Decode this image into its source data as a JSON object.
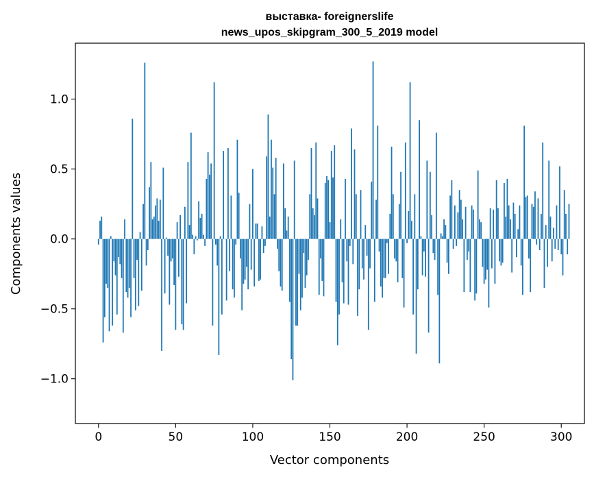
{
  "chart_data": {
    "type": "bar",
    "title_lines": [
      "выставка- foreignerslife",
      "news_upos_skipgram_300_5_2019 model"
    ],
    "xlabel": "Vector components",
    "ylabel": "Components values",
    "xlim": [
      -15,
      315
    ],
    "ylim": [
      -1.32,
      1.4
    ],
    "xticks": [
      0,
      50,
      100,
      150,
      200,
      250,
      300
    ],
    "xtick_labels": [
      "0",
      "50",
      "100",
      "150",
      "200",
      "250",
      "300"
    ],
    "yticks": [
      -1.0,
      -0.5,
      0.0,
      0.5,
      1.0
    ],
    "ytick_labels": [
      "−1.0",
      "−0.5",
      "0.0",
      "0.5",
      "1.0"
    ],
    "grid": false,
    "bar_color": "#1f77b4",
    "values": [
      -0.04,
      0.13,
      0.16,
      -0.74,
      -0.56,
      -0.32,
      -0.35,
      -0.66,
      0.02,
      -0.62,
      -0.16,
      -0.26,
      -0.54,
      -0.13,
      -0.18,
      -0.28,
      -0.67,
      0.14,
      -0.38,
      -0.42,
      -0.35,
      -0.56,
      0.86,
      -0.28,
      -0.51,
      -0.15,
      -0.48,
      0.05,
      -0.37,
      0.25,
      1.26,
      -0.19,
      -0.08,
      0.37,
      0.55,
      0.14,
      0.16,
      0.24,
      0.29,
      0.13,
      0.28,
      -0.8,
      0.51,
      -0.39,
      0.01,
      -0.12,
      -0.47,
      -0.16,
      -0.14,
      -0.33,
      -0.65,
      0.12,
      -0.27,
      0.17,
      -0.61,
      -0.65,
      0.23,
      -0.46,
      0.55,
      0.1,
      0.76,
      0.03,
      -0.11,
      0.02,
      -0.01,
      0.27,
      0.15,
      0.18,
      0.03,
      -0.05,
      0.43,
      0.62,
      0.46,
      0.54,
      -0.62,
      1.12,
      -0.04,
      -0.19,
      -0.83,
      0.02,
      -0.54,
      0.63,
      0.0,
      -0.44,
      0.65,
      -0.23,
      0.31,
      -0.36,
      -0.42,
      -0.04,
      0.71,
      0.33,
      -0.14,
      -0.51,
      -0.32,
      -0.29,
      -0.2,
      -0.36,
      0.25,
      -0.22,
      0.5,
      -0.34,
      0.11,
      0.11,
      -0.3,
      -0.29,
      0.09,
      -0.1,
      -0.05,
      0.59,
      0.89,
      0.16,
      0.71,
      0.51,
      0.32,
      0.58,
      -0.07,
      -0.23,
      -0.34,
      -0.37,
      0.54,
      0.22,
      0.06,
      0.16,
      -0.45,
      -0.86,
      -1.01,
      0.56,
      -0.62,
      -0.62,
      -0.25,
      -0.51,
      -0.42,
      -0.1,
      -0.35,
      -0.26,
      -0.15,
      0.32,
      0.65,
      0.22,
      0.17,
      0.69,
      0.29,
      -0.4,
      -0.14,
      -0.3,
      -0.41,
      0.4,
      0.45,
      0.42,
      0.12,
      0.63,
      0.44,
      0.67,
      -0.45,
      -0.76,
      -0.54,
      0.14,
      -0.31,
      -0.46,
      0.43,
      -0.16,
      -0.47,
      -0.05,
      0.79,
      -0.18,
      0.64,
      0.32,
      -0.55,
      -0.36,
      0.35,
      -0.21,
      -0.29,
      0.1,
      -0.12,
      -0.65,
      -0.21,
      0.41,
      1.27,
      -0.45,
      0.28,
      0.81,
      -0.09,
      -0.34,
      -0.42,
      -0.28,
      -0.28,
      -0.03,
      -0.25,
      0.18,
      0.66,
      0.32,
      -0.14,
      -0.16,
      -0.31,
      0.25,
      0.48,
      -0.28,
      -0.49,
      0.69,
      -0.03,
      0.2,
      1.12,
      0.13,
      -0.54,
      0.32,
      -0.82,
      -0.36,
      0.85,
      0.02,
      -0.26,
      -0.09,
      -0.27,
      0.56,
      -0.67,
      0.48,
      0.17,
      -0.1,
      -0.15,
      0.76,
      -0.4,
      -0.89,
      0.04,
      0.02,
      0.14,
      0.1,
      -0.17,
      -0.25,
      0.31,
      0.42,
      -0.07,
      0.24,
      -0.05,
      0.19,
      0.35,
      0.28,
      0.14,
      -0.38,
      0.23,
      -0.15,
      -0.09,
      -0.38,
      0.24,
      0.21,
      -0.44,
      -0.39,
      0.49,
      0.14,
      0.12,
      -0.2,
      -0.32,
      -0.29,
      -0.22,
      -0.49,
      0.22,
      -0.21,
      0.21,
      -0.32,
      0.42,
      0.22,
      -0.16,
      -0.19,
      -0.17,
      0.4,
      0.16,
      0.43,
      0.24,
      0.14,
      -0.24,
      0.26,
      0.18,
      -0.13,
      0.07,
      0.24,
      -0.19,
      -0.4,
      0.81,
      0.3,
      0.31,
      -0.14,
      -0.38,
      0.25,
      0.23,
      0.34,
      -0.04,
      0.29,
      -0.08,
      0.18,
      0.69,
      -0.35,
      0.1,
      -0.2,
      0.56,
      0.16,
      -0.16,
      0.08,
      -0.07,
      0.24,
      -0.08,
      0.52,
      -0.11,
      -0.26,
      0.35,
      0.18,
      -0.11,
      0.25
    ]
  }
}
